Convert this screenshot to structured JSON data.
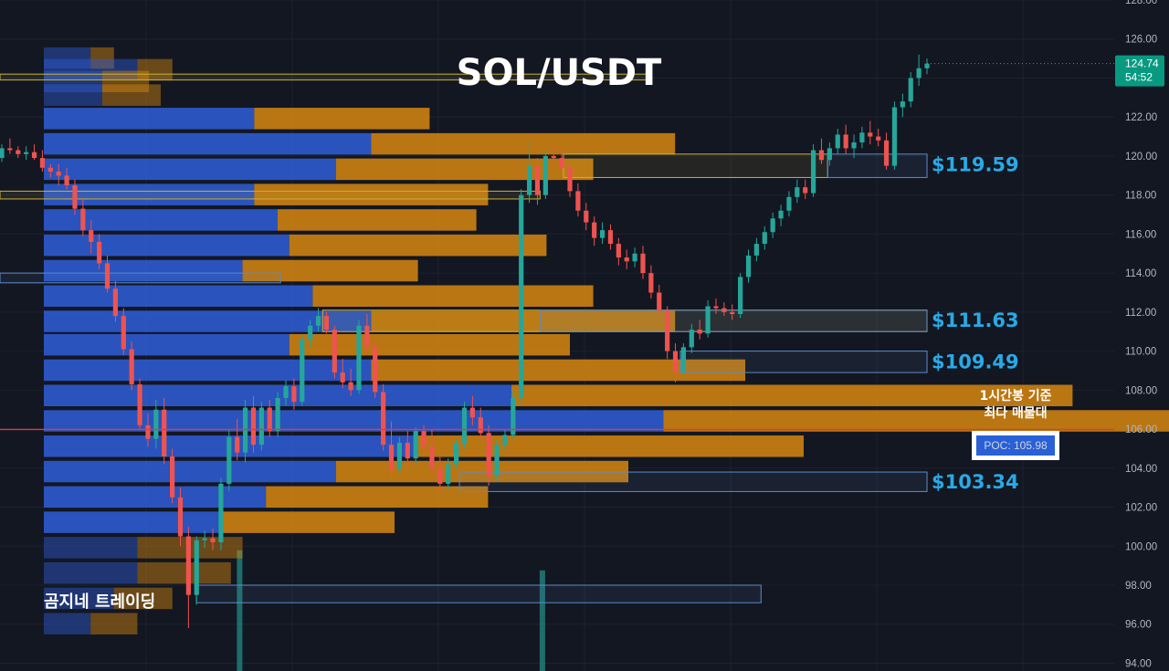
{
  "title": "SOL/USDT",
  "brand": "곰지네 트레이딩",
  "annotation": {
    "line1": "1시간봉 기준",
    "line2": "최다 매물대"
  },
  "poc": {
    "label": "POC: 105.98",
    "price": 105.98
  },
  "current_price": {
    "price": 124.74,
    "price_label": "124.74",
    "countdown": "54:52"
  },
  "colors": {
    "background": "#131722",
    "grid": "#1e222d",
    "up": "#26a69a",
    "down": "#ef5350",
    "level_text": "#29a9e6",
    "poc_line": "#e53935",
    "zone_blue": "#5b8cc8",
    "zone_yellow": "#c9b23c",
    "vp_blue": "#2f5ed8",
    "vp_orange": "#d8870f"
  },
  "chart_data": {
    "type": "candlestick",
    "title": "SOL/USDT",
    "ylim": [
      93.6,
      128.0
    ],
    "y_ticks": [
      "94.00",
      "96.00",
      "98.00",
      "100.00",
      "102.00",
      "104.00",
      "106.00",
      "108.00",
      "110.00",
      "112.00",
      "114.00",
      "116.00",
      "118.00",
      "120.00",
      "122.00",
      "124.00",
      "126.00",
      "128.00"
    ],
    "grid": true,
    "price_levels": [
      {
        "label": "$119.59",
        "price": 119.59
      },
      {
        "label": "$111.63",
        "price": 111.63
      },
      {
        "label": "$109.49",
        "price": 109.49
      },
      {
        "label": "$103.34",
        "price": 103.34
      }
    ],
    "zones": [
      {
        "color": "yellow",
        "x0": 0.0,
        "x1": 0.555,
        "top": 124.2,
        "bottom": 123.9
      },
      {
        "color": "yellow",
        "x0": 0.0,
        "x1": 0.462,
        "top": 118.2,
        "bottom": 117.8
      },
      {
        "color": "blue",
        "x0": 0.0,
        "x1": 0.24,
        "top": 114.0,
        "bottom": 113.5
      },
      {
        "color": "yellow",
        "x0": 0.276,
        "x1": 0.793,
        "top": 112.1,
        "bottom": 111.0
      },
      {
        "color": "blue",
        "x0": 0.462,
        "x1": 0.793,
        "top": 112.1,
        "bottom": 111.0
      },
      {
        "color": "yellow",
        "x0": 0.482,
        "x1": 0.708,
        "top": 120.1,
        "bottom": 118.9
      },
      {
        "color": "blue",
        "x0": 0.708,
        "x1": 0.793,
        "top": 120.1,
        "bottom": 118.9
      },
      {
        "color": "blue",
        "x0": 0.582,
        "x1": 0.793,
        "top": 110.0,
        "bottom": 108.9
      },
      {
        "color": "blue",
        "x0": 0.393,
        "x1": 0.793,
        "top": 103.8,
        "bottom": 102.8
      },
      {
        "color": "blue",
        "x0": 0.168,
        "x1": 0.651,
        "top": 98.0,
        "bottom": 97.1
      }
    ],
    "volume_profile": [
      {
        "price": 125.0,
        "buy": 0.04,
        "sell": 0.02
      },
      {
        "price": 124.4,
        "buy": 0.08,
        "sell": 0.03
      },
      {
        "price": 123.8,
        "buy": 0.05,
        "sell": 0.04
      },
      {
        "price": 123.1,
        "buy": 0.05,
        "sell": 0.05
      },
      {
        "price": 121.9,
        "buy": 0.18,
        "sell": 0.15
      },
      {
        "price": 120.6,
        "buy": 0.28,
        "sell": 0.26
      },
      {
        "price": 119.3,
        "buy": 0.25,
        "sell": 0.22
      },
      {
        "price": 118.0,
        "buy": 0.18,
        "sell": 0.2
      },
      {
        "price": 116.7,
        "buy": 0.2,
        "sell": 0.17
      },
      {
        "price": 115.4,
        "buy": 0.21,
        "sell": 0.22
      },
      {
        "price": 114.1,
        "buy": 0.17,
        "sell": 0.15
      },
      {
        "price": 112.8,
        "buy": 0.23,
        "sell": 0.24
      },
      {
        "price": 111.5,
        "buy": 0.28,
        "sell": 0.26
      },
      {
        "price": 110.3,
        "buy": 0.21,
        "sell": 0.24
      },
      {
        "price": 109.0,
        "buy": 0.28,
        "sell": 0.32
      },
      {
        "price": 107.7,
        "buy": 0.4,
        "sell": 0.48
      },
      {
        "price": 106.4,
        "buy": 0.53,
        "sell": 0.53
      },
      {
        "price": 105.1,
        "buy": 0.32,
        "sell": 0.33
      },
      {
        "price": 103.8,
        "buy": 0.25,
        "sell": 0.25
      },
      {
        "price": 102.5,
        "buy": 0.19,
        "sell": 0.19
      },
      {
        "price": 101.2,
        "buy": 0.15,
        "sell": 0.15
      },
      {
        "price": 99.9,
        "buy": 0.08,
        "sell": 0.09
      },
      {
        "price": 98.6,
        "buy": 0.08,
        "sell": 0.08
      },
      {
        "price": 97.3,
        "buy": 0.06,
        "sell": 0.05
      },
      {
        "price": 96.0,
        "buy": 0.04,
        "sell": 0.04
      }
    ],
    "volume_bars": [
      {
        "x": 0.205,
        "value": 0.18
      },
      {
        "x": 0.464,
        "value": 0.15
      }
    ],
    "candles": [
      [
        119.9,
        120.6,
        119.7,
        120.4
      ],
      [
        120.4,
        120.9,
        120.1,
        120.3
      ],
      [
        120.3,
        120.5,
        119.9,
        120.1
      ],
      [
        120.1,
        120.5,
        119.8,
        120.2
      ],
      [
        120.2,
        120.6,
        119.8,
        119.9
      ],
      [
        119.9,
        120.3,
        119.2,
        119.4
      ],
      [
        119.4,
        119.6,
        118.9,
        119.2
      ],
      [
        119.2,
        119.6,
        118.5,
        119.0
      ],
      [
        119.0,
        119.4,
        118.3,
        118.5
      ],
      [
        118.5,
        118.8,
        117.0,
        117.3
      ],
      [
        117.3,
        117.8,
        115.9,
        116.2
      ],
      [
        116.2,
        116.7,
        115.0,
        115.6
      ],
      [
        115.6,
        116.0,
        114.2,
        114.5
      ],
      [
        114.5,
        114.9,
        113.0,
        113.2
      ],
      [
        113.2,
        113.6,
        111.5,
        111.8
      ],
      [
        111.8,
        112.2,
        109.8,
        110.1
      ],
      [
        110.1,
        110.5,
        108.0,
        108.3
      ],
      [
        108.3,
        108.6,
        106.0,
        106.2
      ],
      [
        106.2,
        106.8,
        105.1,
        105.5
      ],
      [
        105.5,
        107.5,
        105.0,
        107.0
      ],
      [
        107.0,
        107.6,
        104.2,
        104.6
      ],
      [
        104.6,
        105.0,
        102.2,
        102.5
      ],
      [
        102.5,
        103.0,
        100.0,
        100.5
      ],
      [
        100.5,
        101.0,
        95.8,
        97.5
      ],
      [
        97.5,
        100.5,
        97.0,
        100.3
      ],
      [
        100.3,
        100.8,
        99.9,
        100.4
      ],
      [
        100.4,
        100.9,
        99.8,
        100.2
      ],
      [
        100.2,
        103.5,
        99.8,
        103.2
      ],
      [
        103.2,
        106.0,
        102.8,
        105.6
      ],
      [
        105.6,
        106.5,
        104.4,
        104.8
      ],
      [
        104.8,
        107.5,
        104.3,
        107.1
      ],
      [
        107.1,
        107.7,
        104.8,
        105.2
      ],
      [
        105.2,
        107.4,
        104.9,
        107.1
      ],
      [
        107.1,
        107.5,
        105.6,
        105.9
      ],
      [
        105.9,
        107.9,
        105.6,
        107.6
      ],
      [
        107.6,
        108.5,
        107.2,
        108.2
      ],
      [
        108.2,
        108.6,
        107.0,
        107.4
      ],
      [
        107.4,
        110.8,
        107.2,
        110.6
      ],
      [
        110.6,
        111.6,
        110.2,
        111.3
      ],
      [
        111.3,
        112.2,
        111.0,
        111.8
      ],
      [
        111.8,
        112.0,
        110.9,
        111.1
      ],
      [
        111.1,
        111.3,
        108.6,
        108.9
      ],
      [
        108.9,
        109.6,
        108.1,
        108.4
      ],
      [
        108.4,
        109.1,
        107.7,
        108.0
      ],
      [
        108.0,
        111.6,
        107.8,
        111.3
      ],
      [
        111.3,
        111.9,
        109.9,
        110.2
      ],
      [
        110.2,
        110.5,
        107.6,
        107.9
      ],
      [
        107.9,
        108.3,
        104.9,
        105.2
      ],
      [
        105.2,
        106.4,
        103.4,
        103.9
      ],
      [
        103.9,
        105.6,
        103.5,
        105.3
      ],
      [
        105.3,
        105.9,
        104.2,
        104.5
      ],
      [
        104.5,
        106.1,
        104.2,
        105.9
      ],
      [
        105.9,
        106.2,
        104.8,
        105.1
      ],
      [
        105.1,
        106.0,
        103.6,
        104.0
      ],
      [
        104.0,
        104.6,
        102.7,
        103.2
      ],
      [
        103.2,
        104.5,
        102.9,
        104.2
      ],
      [
        104.2,
        105.5,
        104.0,
        105.3
      ],
      [
        105.3,
        107.4,
        105.0,
        107.1
      ],
      [
        107.1,
        107.7,
        106.2,
        106.6
      ],
      [
        106.6,
        107.1,
        105.5,
        105.8
      ],
      [
        105.8,
        106.2,
        103.1,
        103.6
      ],
      [
        103.6,
        105.5,
        103.3,
        105.2
      ],
      [
        105.2,
        106.0,
        104.9,
        105.7
      ],
      [
        105.7,
        108.0,
        105.5,
        107.6
      ],
      [
        107.6,
        118.3,
        107.3,
        118.0
      ],
      [
        118.0,
        120.8,
        117.6,
        119.5
      ],
      [
        119.5,
        119.9,
        117.5,
        118.0
      ],
      [
        118.0,
        120.3,
        117.8,
        120.0
      ],
      [
        120.0,
        120.6,
        119.5,
        119.9
      ],
      [
        119.9,
        120.3,
        119.2,
        119.4
      ],
      [
        119.4,
        119.6,
        117.9,
        118.2
      ],
      [
        118.2,
        118.6,
        116.9,
        117.2
      ],
      [
        117.2,
        117.6,
        116.2,
        116.6
      ],
      [
        116.6,
        116.9,
        115.4,
        115.8
      ],
      [
        115.8,
        116.6,
        115.5,
        116.2
      ],
      [
        116.2,
        116.5,
        115.2,
        115.5
      ],
      [
        115.5,
        115.8,
        114.4,
        114.8
      ],
      [
        114.8,
        115.2,
        114.2,
        114.6
      ],
      [
        114.6,
        115.3,
        114.3,
        115.0
      ],
      [
        115.0,
        115.4,
        113.7,
        114.0
      ],
      [
        114.0,
        114.4,
        112.7,
        113.0
      ],
      [
        113.0,
        113.4,
        111.8,
        112.1
      ],
      [
        112.1,
        112.3,
        109.6,
        110.0
      ],
      [
        110.0,
        110.4,
        108.4,
        108.9
      ],
      [
        108.9,
        110.4,
        108.7,
        110.2
      ],
      [
        110.2,
        111.4,
        109.9,
        111.1
      ],
      [
        111.1,
        111.6,
        110.6,
        110.9
      ],
      [
        110.9,
        112.6,
        110.7,
        112.3
      ],
      [
        112.3,
        112.7,
        111.9,
        112.2
      ],
      [
        112.2,
        112.5,
        111.8,
        112.0
      ],
      [
        112.0,
        112.4,
        111.6,
        111.9
      ],
      [
        111.9,
        114.0,
        111.7,
        113.8
      ],
      [
        113.8,
        115.2,
        113.5,
        114.9
      ],
      [
        114.9,
        115.8,
        114.6,
        115.5
      ],
      [
        115.5,
        116.4,
        115.2,
        116.1
      ],
      [
        116.1,
        117.1,
        115.8,
        116.8
      ],
      [
        116.8,
        117.5,
        116.4,
        117.2
      ],
      [
        117.2,
        118.2,
        116.9,
        117.9
      ],
      [
        117.9,
        118.8,
        117.6,
        118.4
      ],
      [
        118.4,
        118.8,
        117.8,
        118.1
      ],
      [
        118.1,
        120.6,
        117.9,
        120.3
      ],
      [
        120.3,
        120.9,
        119.6,
        119.8
      ],
      [
        119.8,
        120.7,
        119.5,
        120.4
      ],
      [
        120.4,
        121.4,
        120.1,
        121.1
      ],
      [
        121.1,
        121.6,
        120.1,
        120.4
      ],
      [
        120.4,
        121.1,
        119.9,
        120.7
      ],
      [
        120.7,
        121.5,
        120.4,
        121.2
      ],
      [
        121.2,
        121.8,
        120.6,
        121.0
      ],
      [
        121.0,
        121.4,
        120.5,
        120.8
      ],
      [
        120.8,
        121.2,
        119.3,
        119.5
      ],
      [
        119.5,
        122.8,
        119.3,
        122.5
      ],
      [
        122.5,
        123.2,
        122.0,
        122.8
      ],
      [
        122.8,
        124.3,
        122.5,
        124.0
      ],
      [
        124.0,
        125.2,
        123.6,
        124.5
      ],
      [
        124.5,
        125.0,
        124.2,
        124.74
      ]
    ]
  }
}
